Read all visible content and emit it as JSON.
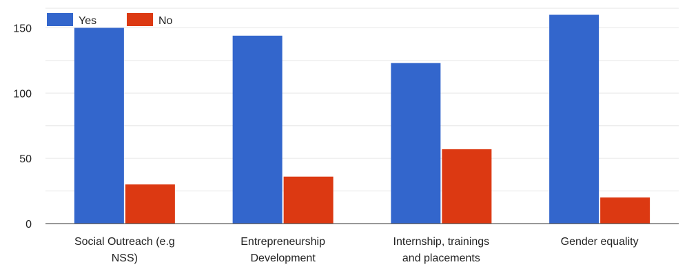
{
  "chart_data": {
    "type": "bar",
    "title": "",
    "xlabel": "",
    "ylabel": "",
    "ylim": [
      0,
      165
    ],
    "yticks": [
      0,
      50,
      100,
      150
    ],
    "grid": true,
    "legend_position": "top-left",
    "categories": [
      [
        "Social Outreach (e.g",
        "NSS)"
      ],
      [
        "Entrepreneurship",
        "Development"
      ],
      [
        "Internship, trainings",
        "and placements"
      ],
      [
        "Gender equality"
      ]
    ],
    "series": [
      {
        "name": "Yes",
        "color": "#3366cc",
        "values": [
          150,
          144,
          123,
          160
        ]
      },
      {
        "name": "No",
        "color": "#dc3912",
        "values": [
          30,
          36,
          57,
          20
        ]
      }
    ]
  }
}
